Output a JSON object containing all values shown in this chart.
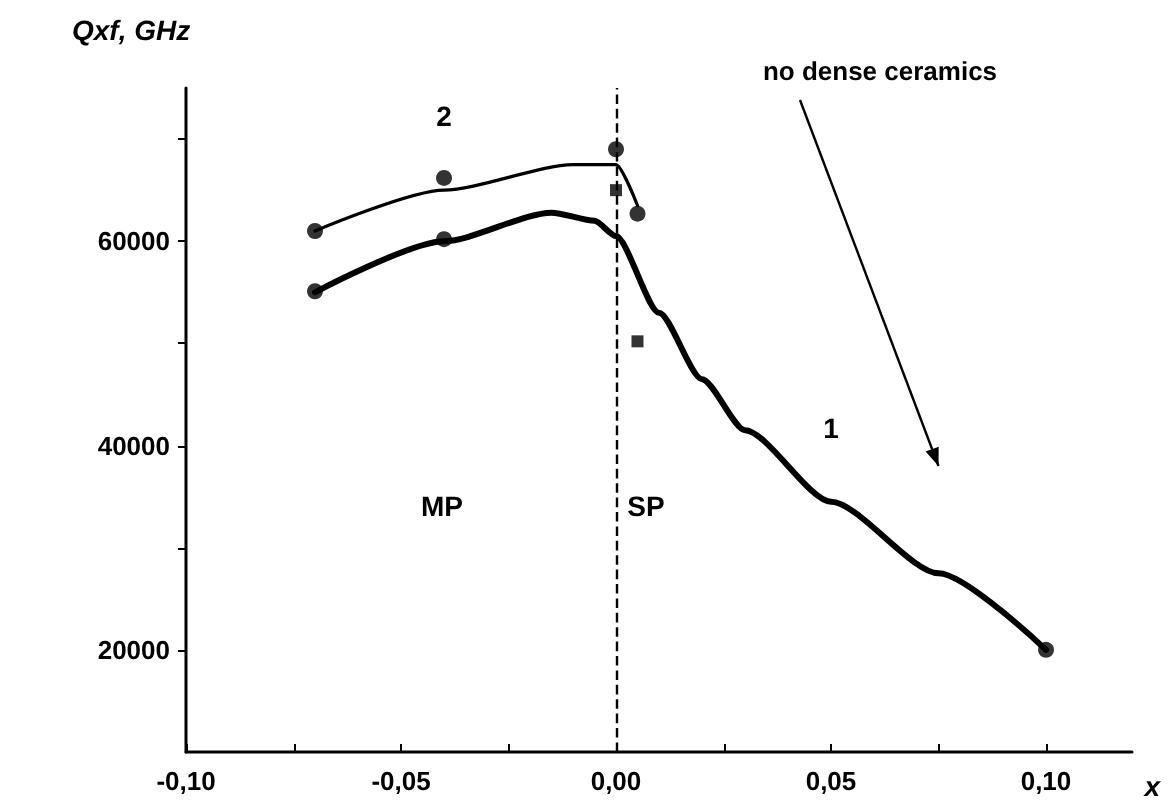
{
  "chart_data": {
    "type": "line",
    "ylabel": "Qxf, GHz",
    "xlabel": "x",
    "xlim": [
      -0.1,
      0.12
    ],
    "xticks": [
      {
        "value": -0.1,
        "label": "-0,10"
      },
      {
        "value": -0.075,
        "label": null
      },
      {
        "value": -0.05,
        "label": "-0,05"
      },
      {
        "value": -0.025,
        "label": null
      },
      {
        "value": 0,
        "label": "0,00"
      },
      {
        "value": 0.025,
        "label": null
      },
      {
        "value": 0.05,
        "label": "0,05"
      },
      {
        "value": 0.075,
        "label": null
      },
      {
        "value": 0.1,
        "label": "0,10"
      }
    ],
    "ylim": [
      10000,
      75000
    ],
    "yticks": [
      {
        "value": 20000,
        "label": "20000"
      },
      {
        "value": 30000,
        "label": null
      },
      {
        "value": 40000,
        "label": "40000"
      },
      {
        "value": 50000,
        "label": null
      },
      {
        "value": 60000,
        "label": "60000"
      },
      {
        "value": 70000,
        "label": null
      }
    ],
    "grid": false,
    "legend": false,
    "series": [
      {
        "name": "1",
        "color": "#000000",
        "marker": "none",
        "x": [
          -0.07,
          -0.04,
          -0.015,
          -0.005,
          0,
          0.01,
          0.02,
          0.03,
          0.05,
          0.075,
          0.1
        ],
        "values": [
          55000,
          60000,
          62800,
          62000,
          60500,
          53000,
          46500,
          41500,
          34500,
          27500,
          20000
        ]
      },
      {
        "name": "2",
        "color": "#000000",
        "marker": "none",
        "x": [
          -0.07,
          -0.04,
          -0.01,
          0,
          0.005
        ],
        "values": [
          61000,
          65000,
          67500,
          67500,
          63500
        ]
      },
      {
        "type": "scatter",
        "color": "#000000",
        "marker": "circle",
        "x": [
          -0.07,
          -0.04,
          0,
          0.005,
          -0.07,
          -0.04,
          0.1
        ],
        "values": [
          61000,
          66200,
          69000,
          62700,
          55100,
          60200,
          20000
        ]
      },
      {
        "type": "scatter",
        "color": "#000000",
        "marker": "square",
        "x": [
          0,
          0.005
        ],
        "values": [
          65000,
          50200
        ]
      }
    ],
    "ref_lines": [
      {
        "axis": "x",
        "value": 0,
        "line_style": "dashed",
        "color": "#000000"
      }
    ],
    "annotations": [
      "MP",
      "SP",
      "no dense ceramics"
    ]
  }
}
